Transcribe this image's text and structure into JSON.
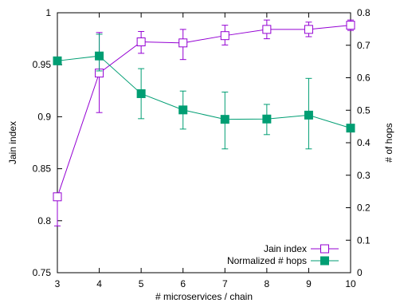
{
  "chart_data": {
    "type": "line",
    "x": [
      3,
      4,
      5,
      6,
      7,
      8,
      9,
      10
    ],
    "xlabel": "# microservices / chain",
    "ylabel": "Jain index",
    "y2label": "# of hops",
    "xlim": [
      3,
      10
    ],
    "ylim": [
      0.75,
      1
    ],
    "y2lim": [
      0,
      0.8
    ],
    "x_ticks": [
      "3",
      "4",
      "5",
      "6",
      "7",
      "8",
      "9",
      "10"
    ],
    "y_ticks": [
      "0.75",
      "0.8",
      "0.85",
      "0.9",
      "0.95",
      "1"
    ],
    "y2_ticks": [
      "0",
      "0.1",
      "0.2",
      "0.3",
      "0.4",
      "0.5",
      "0.6",
      "0.7",
      "0.8"
    ],
    "grid": false,
    "legend_position": "bottom-right",
    "series": [
      {
        "name": "Jain index",
        "axis": "left",
        "color": "#9400d3",
        "marker": "open-square",
        "values": [
          0.823,
          0.942,
          0.972,
          0.971,
          0.978,
          0.984,
          0.984,
          0.988
        ],
        "err_low": [
          0.795,
          0.904,
          0.961,
          0.955,
          0.969,
          0.975,
          0.977,
          0.983
        ],
        "err_high": [
          0.823,
          0.981,
          0.982,
          0.984,
          0.988,
          0.993,
          0.991,
          0.993
        ]
      },
      {
        "name": "Normalized # hops",
        "axis": "right",
        "color": "#009e73",
        "marker": "filled-square",
        "values": [
          0.652,
          0.667,
          0.551,
          0.501,
          0.472,
          0.473,
          0.485,
          0.445
        ],
        "err_low": [
          0.652,
          0.621,
          0.474,
          0.442,
          0.381,
          0.425,
          0.381,
          0.445
        ],
        "err_high": [
          0.652,
          0.734,
          0.628,
          0.559,
          0.556,
          0.518,
          0.598,
          0.445
        ]
      }
    ]
  }
}
